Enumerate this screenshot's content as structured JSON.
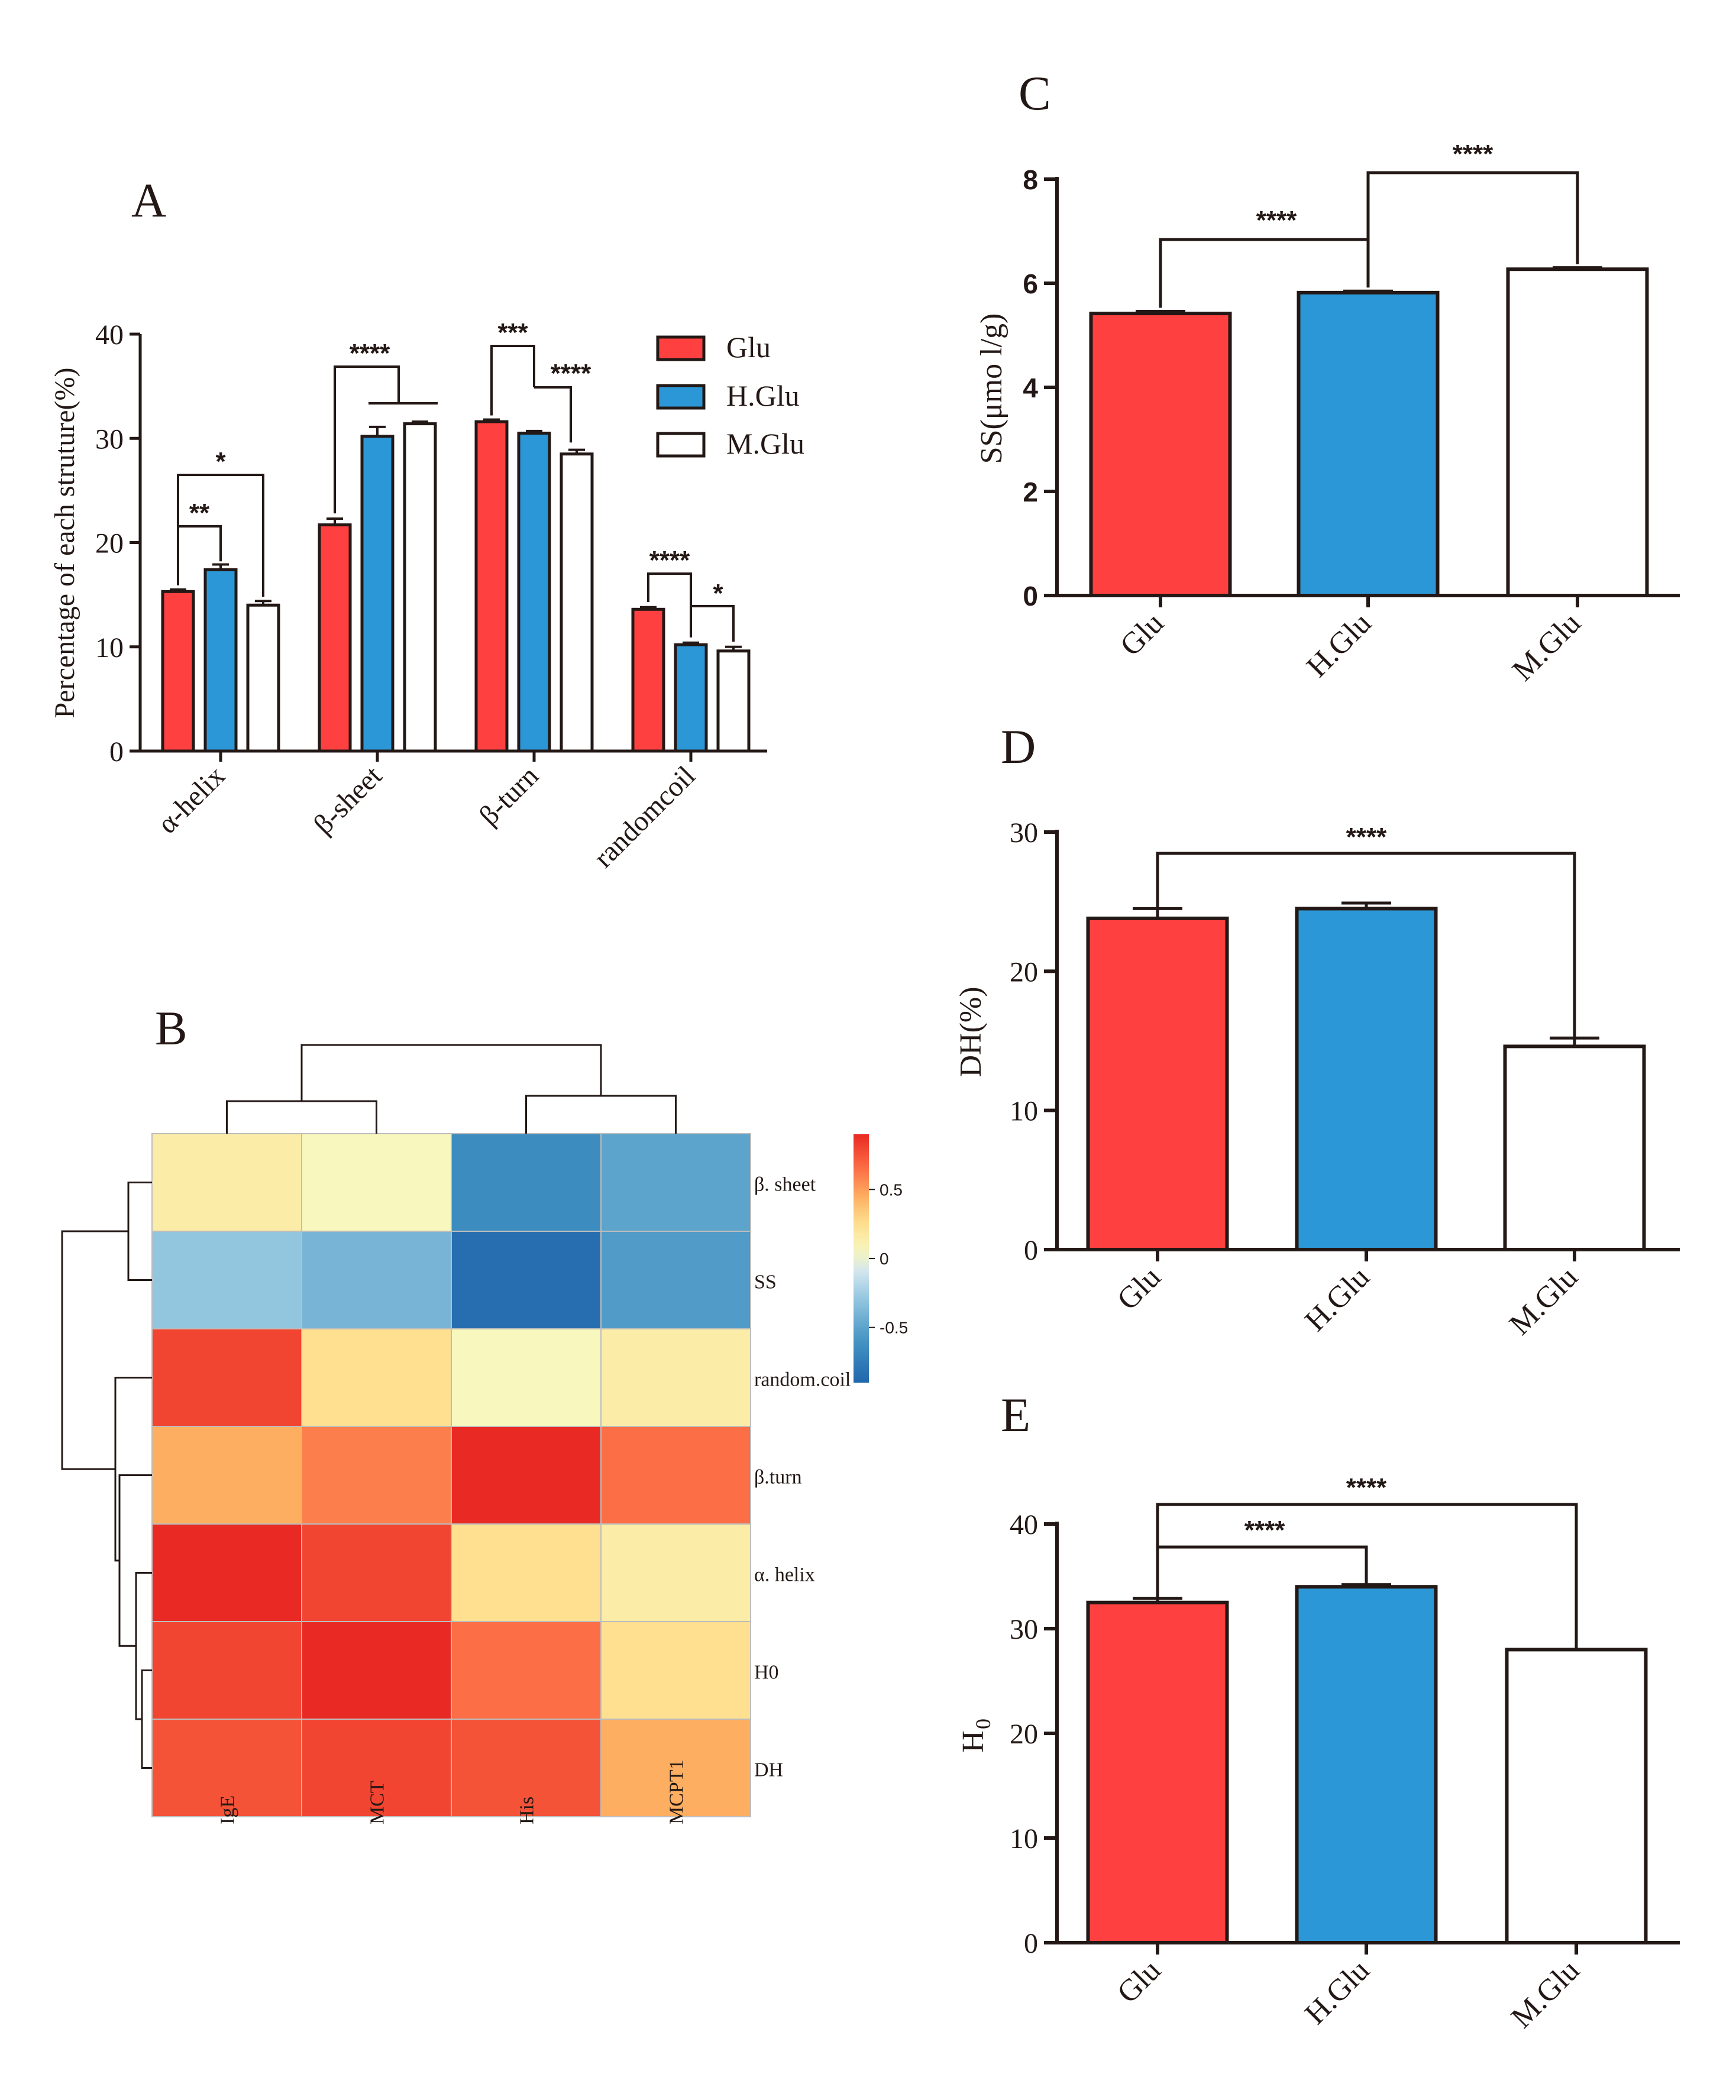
{
  "colors": {
    "glu": "#ff4040",
    "hglu": "#2c97d6",
    "mglu": "#ffffff",
    "axis": "#231815"
  },
  "chart_data": [
    {
      "id": "A",
      "panel_label": "A",
      "type": "bar",
      "title": "",
      "xlabel": "",
      "ylabel": "Percentage of each struture(%)",
      "ylim": [
        0,
        40
      ],
      "yticks": [
        "0",
        "10",
        "20",
        "30",
        "40"
      ],
      "categories": [
        "α-helix",
        "β-sheet",
        "β-turn",
        "randomcoil"
      ],
      "series": [
        {
          "name": "Glu",
          "color": "#ff4040",
          "values": [
            15.3,
            21.7,
            31.6,
            13.6
          ],
          "errors": [
            0.2,
            0.6,
            0.2,
            0.2
          ]
        },
        {
          "name": "H.Glu",
          "color": "#2c97d6",
          "values": [
            17.4,
            30.2,
            30.5,
            10.2
          ],
          "errors": [
            0.5,
            0.9,
            0.2,
            0.2
          ]
        },
        {
          "name": "M.Glu",
          "color": "#ffffff",
          "values": [
            14.0,
            31.4,
            28.5,
            9.6
          ],
          "errors": [
            0.4,
            0.2,
            0.4,
            0.4
          ]
        }
      ],
      "legend": [
        "Glu",
        "H.Glu",
        "M.Glu"
      ],
      "legend_position": "top-right",
      "annotations": [
        "**",
        "*",
        "****",
        "***",
        "****",
        "****",
        "*"
      ]
    },
    {
      "id": "C",
      "panel_label": "C",
      "type": "bar",
      "title": "",
      "xlabel": "",
      "ylabel": "SS(μmo l/g)",
      "ylim": [
        0,
        8
      ],
      "yticks": [
        "0",
        "2",
        "4",
        "6",
        "8"
      ],
      "categories": [
        "Glu",
        "H.Glu",
        "M.Glu"
      ],
      "values": [
        5.42,
        5.82,
        6.27
      ],
      "errors": [
        0.04,
        0.03,
        0.03
      ],
      "annotations": [
        "****",
        "****"
      ]
    },
    {
      "id": "D",
      "panel_label": "D",
      "type": "bar",
      "title": "",
      "xlabel": "",
      "ylabel": "DH(%)",
      "ylim": [
        0,
        30
      ],
      "yticks": [
        "0",
        "10",
        "20",
        "30"
      ],
      "categories": [
        "Glu",
        "H.Glu",
        "M.Glu"
      ],
      "values": [
        23.8,
        24.5,
        14.6
      ],
      "errors": [
        0.7,
        0.4,
        0.6
      ],
      "annotations": [
        "****"
      ]
    },
    {
      "id": "E",
      "panel_label": "E",
      "type": "bar",
      "title": "",
      "xlabel": "",
      "ylabel": "H",
      "ylabel_subscript": "0",
      "ylim": [
        0,
        40
      ],
      "yticks": [
        "0",
        "10",
        "20",
        "30",
        "40"
      ],
      "categories": [
        "Glu",
        "H.Glu",
        "M.Glu"
      ],
      "values": [
        32.5,
        34.0,
        28.0
      ],
      "errors": [
        0.4,
        0.2,
        0.0
      ],
      "annotations": [
        "****",
        "****"
      ]
    },
    {
      "id": "B",
      "panel_label": "B",
      "type": "heatmap",
      "title": "",
      "columns": [
        "IgE",
        "MCT",
        "His",
        "MCPT1"
      ],
      "rows": [
        "β. sheet",
        "SS",
        "random.coil",
        "β.turn",
        "α. helix",
        "H0",
        "DH"
      ],
      "values": [
        [
          0.15,
          0.05,
          -0.65,
          -0.5
        ],
        [
          -0.3,
          -0.4,
          -0.85,
          -0.55
        ],
        [
          0.8,
          0.25,
          0.05,
          0.15
        ],
        [
          0.45,
          0.6,
          0.9,
          0.65
        ],
        [
          0.9,
          0.8,
          0.25,
          0.15
        ],
        [
          0.8,
          0.9,
          0.65,
          0.25
        ],
        [
          0.75,
          0.8,
          0.75,
          0.45
        ]
      ],
      "colorbar": {
        "min": -0.9,
        "max": 0.9,
        "ticks": [
          "0.5",
          "0",
          "-0.5"
        ]
      }
    }
  ]
}
